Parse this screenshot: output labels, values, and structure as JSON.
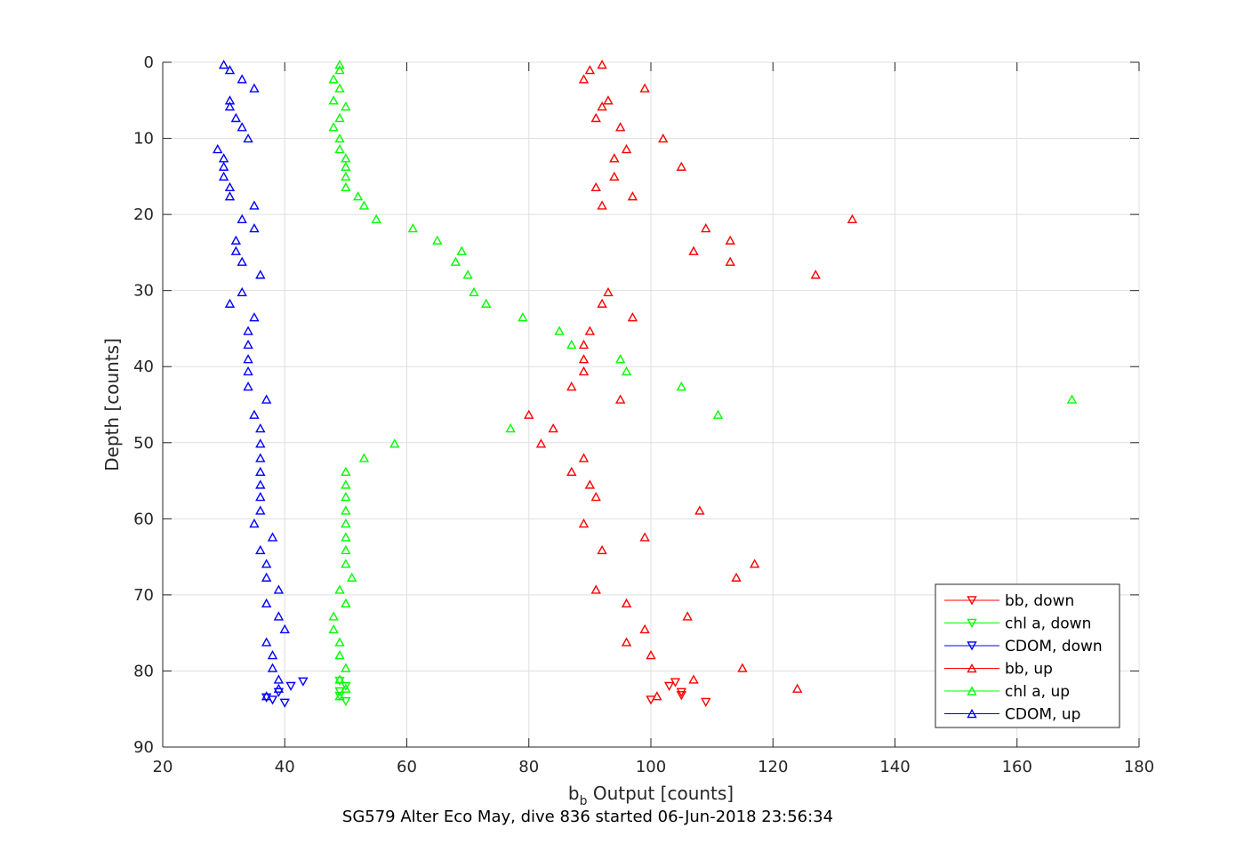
{
  "chart_data": {
    "type": "scatter",
    "title": "",
    "caption": "SG579 Alter Eco May, dive 836 started 06-Jun-2018 23:56:34",
    "xlabel": {
      "main": "b",
      "sub": "b",
      "rest": " Output [counts]"
    },
    "ylabel": "Depth [counts]",
    "xlim": [
      20,
      180
    ],
    "ylim": [
      0,
      90
    ],
    "y_reversed": true,
    "grid": true,
    "x_ticks": [
      "20",
      "40",
      "60",
      "80",
      "100",
      "120",
      "140",
      "160",
      "180"
    ],
    "y_ticks": [
      "0",
      "10",
      "20",
      "30",
      "40",
      "50",
      "60",
      "70",
      "80",
      "90"
    ],
    "legend_position": "bottom-right",
    "colors": {
      "red": "#ff0000",
      "green": "#00ff00",
      "blue": "#0000ff"
    },
    "series": [
      {
        "name": "bb, down",
        "color": "#ff0000",
        "marker": "triangle-down",
        "points": [
          [
            100,
            83.8
          ],
          [
            105,
            83.2
          ],
          [
            109,
            84.1
          ],
          [
            105,
            82.8
          ],
          [
            103,
            82.0
          ],
          [
            104,
            81.5
          ]
        ]
      },
      {
        "name": "chl a, down",
        "color": "#00ff00",
        "marker": "triangle-down",
        "points": [
          [
            49,
            83.3
          ],
          [
            50,
            84.0
          ],
          [
            49,
            82.7
          ],
          [
            50,
            82.0
          ],
          [
            49,
            81.3
          ]
        ]
      },
      {
        "name": "CDOM, down",
        "color": "#0000ff",
        "marker": "triangle-down",
        "points": [
          [
            37,
            83.5
          ],
          [
            38,
            83.8
          ],
          [
            40,
            84.2
          ],
          [
            39,
            82.8
          ],
          [
            41,
            82.0
          ],
          [
            43,
            81.4
          ]
        ]
      },
      {
        "name": "bb, up",
        "color": "#ff0000",
        "marker": "triangle-up",
        "points": [
          [
            92,
            0.3
          ],
          [
            90,
            1.0
          ],
          [
            89,
            2.2
          ],
          [
            99,
            3.4
          ],
          [
            93,
            5.0
          ],
          [
            92,
            5.8
          ],
          [
            91,
            7.3
          ],
          [
            95,
            8.5
          ],
          [
            102,
            10.0
          ],
          [
            96,
            11.4
          ],
          [
            94,
            12.6
          ],
          [
            105,
            13.7
          ],
          [
            94,
            15.0
          ],
          [
            91,
            16.4
          ],
          [
            97,
            17.6
          ],
          [
            92,
            18.8
          ],
          [
            133,
            20.6
          ],
          [
            109,
            21.8
          ],
          [
            113,
            23.4
          ],
          [
            107,
            24.8
          ],
          [
            113,
            26.2
          ],
          [
            127,
            27.9
          ],
          [
            93,
            30.2
          ],
          [
            92,
            31.7
          ],
          [
            97,
            33.5
          ],
          [
            90,
            35.3
          ],
          [
            89,
            37.1
          ],
          [
            89,
            39.0
          ],
          [
            89,
            40.6
          ],
          [
            87,
            42.6
          ],
          [
            95,
            44.3
          ],
          [
            80,
            46.3
          ],
          [
            84,
            48.1
          ],
          [
            82,
            50.1
          ],
          [
            89,
            52.0
          ],
          [
            87,
            53.8
          ],
          [
            90,
            55.5
          ],
          [
            91,
            57.1
          ],
          [
            108,
            58.9
          ],
          [
            89,
            60.6
          ],
          [
            99,
            62.4
          ],
          [
            92,
            64.1
          ],
          [
            117,
            65.9
          ],
          [
            114,
            67.7
          ],
          [
            91,
            69.3
          ],
          [
            96,
            71.1
          ],
          [
            106,
            72.8
          ],
          [
            99,
            74.5
          ],
          [
            96,
            76.2
          ],
          [
            100,
            77.9
          ],
          [
            115,
            79.6
          ],
          [
            107,
            81.1
          ],
          [
            124,
            82.3
          ],
          [
            101,
            83.3
          ]
        ]
      },
      {
        "name": "chl a, up",
        "color": "#00ff00",
        "marker": "triangle-up",
        "points": [
          [
            49,
            0.3
          ],
          [
            49,
            1.0
          ],
          [
            48,
            2.2
          ],
          [
            49,
            3.4
          ],
          [
            48,
            5.0
          ],
          [
            50,
            5.8
          ],
          [
            49,
            7.3
          ],
          [
            48,
            8.5
          ],
          [
            49,
            10.0
          ],
          [
            49,
            11.4
          ],
          [
            50,
            12.6
          ],
          [
            50,
            13.7
          ],
          [
            50,
            15.0
          ],
          [
            50,
            16.4
          ],
          [
            52,
            17.6
          ],
          [
            53,
            18.8
          ],
          [
            55,
            20.6
          ],
          [
            61,
            21.8
          ],
          [
            65,
            23.4
          ],
          [
            69,
            24.8
          ],
          [
            68,
            26.2
          ],
          [
            70,
            27.9
          ],
          [
            71,
            30.2
          ],
          [
            73,
            31.7
          ],
          [
            79,
            33.5
          ],
          [
            85,
            35.3
          ],
          [
            87,
            37.1
          ],
          [
            95,
            39.0
          ],
          [
            96,
            40.6
          ],
          [
            105,
            42.6
          ],
          [
            169,
            44.3
          ],
          [
            111,
            46.3
          ],
          [
            77,
            48.1
          ],
          [
            58,
            50.1
          ],
          [
            53,
            52.0
          ],
          [
            50,
            53.8
          ],
          [
            50,
            55.5
          ],
          [
            50,
            57.1
          ],
          [
            50,
            58.9
          ],
          [
            50,
            60.6
          ],
          [
            50,
            62.4
          ],
          [
            50,
            64.1
          ],
          [
            50,
            65.9
          ],
          [
            51,
            67.7
          ],
          [
            49,
            69.3
          ],
          [
            50,
            71.1
          ],
          [
            48,
            72.8
          ],
          [
            48,
            74.5
          ],
          [
            49,
            76.2
          ],
          [
            49,
            77.9
          ],
          [
            50,
            79.6
          ],
          [
            49,
            81.1
          ],
          [
            50,
            82.3
          ],
          [
            49,
            83.3
          ]
        ]
      },
      {
        "name": "CDOM, up",
        "color": "#0000ff",
        "marker": "triangle-up",
        "points": [
          [
            30,
            0.3
          ],
          [
            31,
            1.0
          ],
          [
            33,
            2.2
          ],
          [
            35,
            3.4
          ],
          [
            31,
            5.0
          ],
          [
            31,
            5.8
          ],
          [
            32,
            7.3
          ],
          [
            33,
            8.5
          ],
          [
            34,
            10.0
          ],
          [
            29,
            11.4
          ],
          [
            30,
            12.6
          ],
          [
            30,
            13.7
          ],
          [
            30,
            15.0
          ],
          [
            31,
            16.4
          ],
          [
            31,
            17.6
          ],
          [
            35,
            18.8
          ],
          [
            33,
            20.6
          ],
          [
            35,
            21.8
          ],
          [
            32,
            23.4
          ],
          [
            32,
            24.8
          ],
          [
            33,
            26.2
          ],
          [
            36,
            27.9
          ],
          [
            33,
            30.2
          ],
          [
            31,
            31.7
          ],
          [
            35,
            33.5
          ],
          [
            34,
            35.3
          ],
          [
            34,
            37.1
          ],
          [
            34,
            39.0
          ],
          [
            34,
            40.6
          ],
          [
            34,
            42.6
          ],
          [
            37,
            44.3
          ],
          [
            35,
            46.3
          ],
          [
            36,
            48.1
          ],
          [
            36,
            50.1
          ],
          [
            36,
            52.0
          ],
          [
            36,
            53.8
          ],
          [
            36,
            55.5
          ],
          [
            36,
            57.1
          ],
          [
            36,
            58.9
          ],
          [
            35,
            60.6
          ],
          [
            38,
            62.4
          ],
          [
            36,
            64.1
          ],
          [
            37,
            65.9
          ],
          [
            37,
            67.7
          ],
          [
            39,
            69.3
          ],
          [
            37,
            71.1
          ],
          [
            39,
            72.8
          ],
          [
            40,
            74.5
          ],
          [
            37,
            76.2
          ],
          [
            38,
            77.9
          ],
          [
            38,
            79.6
          ],
          [
            39,
            81.1
          ],
          [
            39,
            82.3
          ],
          [
            37,
            83.3
          ]
        ]
      }
    ]
  }
}
